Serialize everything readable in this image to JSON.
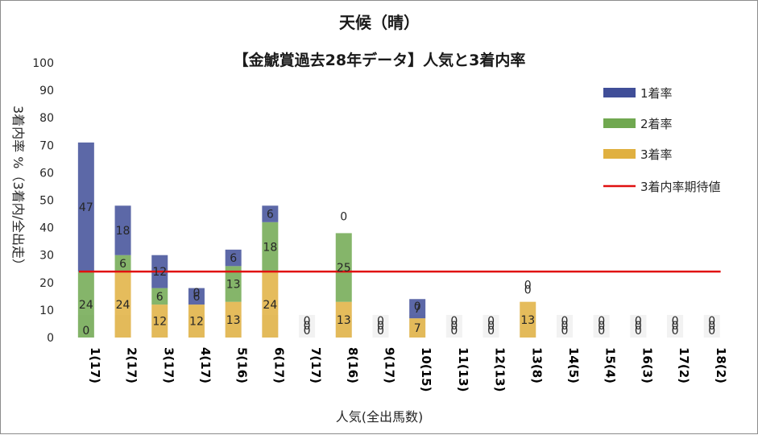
{
  "chart_data": {
    "type": "bar",
    "stacked": true,
    "title": "天候（晴）",
    "subtitle": "【金鯱賞過去28年データ】人気と3着内率",
    "xlabel": "人気(全出馬数)",
    "ylabel": "3着内率 %（3着内/全出走）",
    "ylim": [
      0,
      100
    ],
    "yticks": [
      0,
      10,
      20,
      30,
      40,
      50,
      60,
      70,
      80,
      90,
      100
    ],
    "categories": [
      "1(17)",
      "2(17)",
      "3(17)",
      "4(17)",
      "5(16)",
      "6(17)",
      "7(17)",
      "8(16)",
      "9(17)",
      "10(15)",
      "11(13)",
      "12(13)",
      "13(8)",
      "14(5)",
      "15(4)",
      "16(3)",
      "17(2)",
      "18(2)"
    ],
    "series": [
      {
        "name": "3着率",
        "color": "#e0b040",
        "values": [
          0,
          24,
          12,
          12,
          13,
          24,
          0,
          13,
          0,
          7,
          0,
          0,
          13,
          0,
          0,
          0,
          0,
          0
        ]
      },
      {
        "name": "2着率",
        "color": "#70a850",
        "values": [
          24,
          6,
          6,
          0,
          13,
          18,
          0,
          25,
          0,
          0,
          0,
          0,
          0,
          0,
          0,
          0,
          0,
          0
        ]
      },
      {
        "name": "1着率",
        "color": "#404e98",
        "values": [
          47,
          18,
          12,
          6,
          6,
          6,
          0,
          0,
          0,
          7,
          0,
          0,
          0,
          0,
          0,
          0,
          0,
          0
        ]
      }
    ],
    "reference_line": {
      "name": "3着内率期待値",
      "value": 24,
      "color": "#e01010"
    },
    "legend": "right"
  }
}
